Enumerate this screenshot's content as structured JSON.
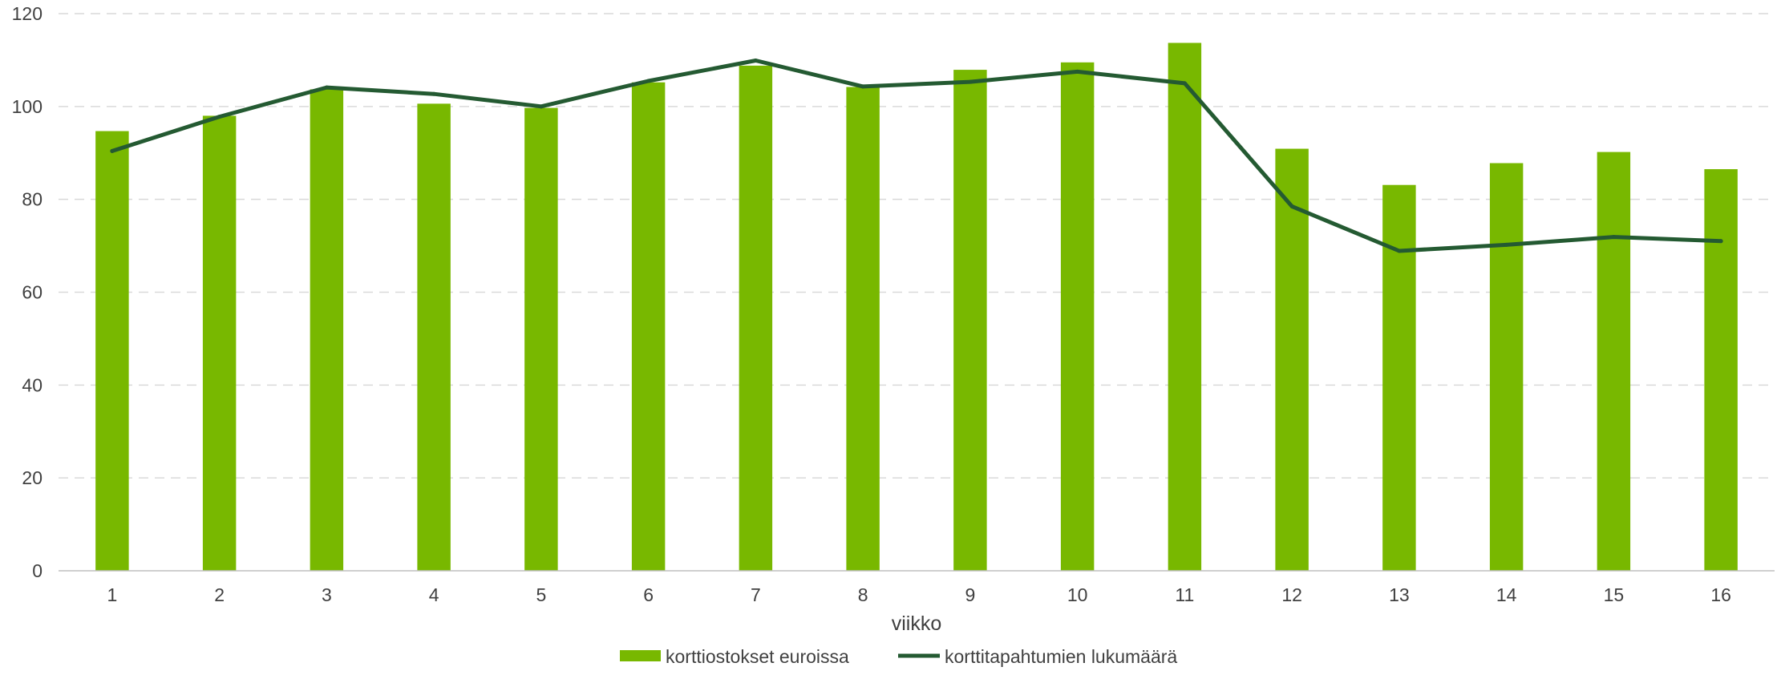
{
  "chart_data": {
    "type": "bar",
    "title": "",
    "xlabel": "viikko",
    "ylabel": "",
    "ylim": [
      0,
      120
    ],
    "yticks": [
      0,
      20,
      40,
      60,
      80,
      100,
      120
    ],
    "grid": true,
    "legend_position": "bottom",
    "categories": [
      "1",
      "2",
      "3",
      "4",
      "5",
      "6",
      "7",
      "8",
      "9",
      "10",
      "11",
      "12",
      "13",
      "14",
      "15",
      "16"
    ],
    "series": [
      {
        "name": "korttiostokset euroissa",
        "type": "bar",
        "color": "#78b800",
        "values": [
          94.7,
          98.0,
          103.7,
          100.6,
          99.7,
          105.2,
          108.8,
          104.2,
          107.9,
          109.5,
          113.7,
          90.9,
          83.1,
          87.8,
          90.2,
          86.5
        ]
      },
      {
        "name": "korttitapahtumien lukumäärä",
        "type": "line",
        "color": "#245a32",
        "values": [
          90.4,
          97.8,
          104.1,
          102.7,
          100.0,
          105.5,
          109.9,
          104.3,
          105.3,
          107.5,
          105.0,
          78.5,
          68.9,
          70.2,
          71.9,
          71.0
        ]
      }
    ]
  }
}
